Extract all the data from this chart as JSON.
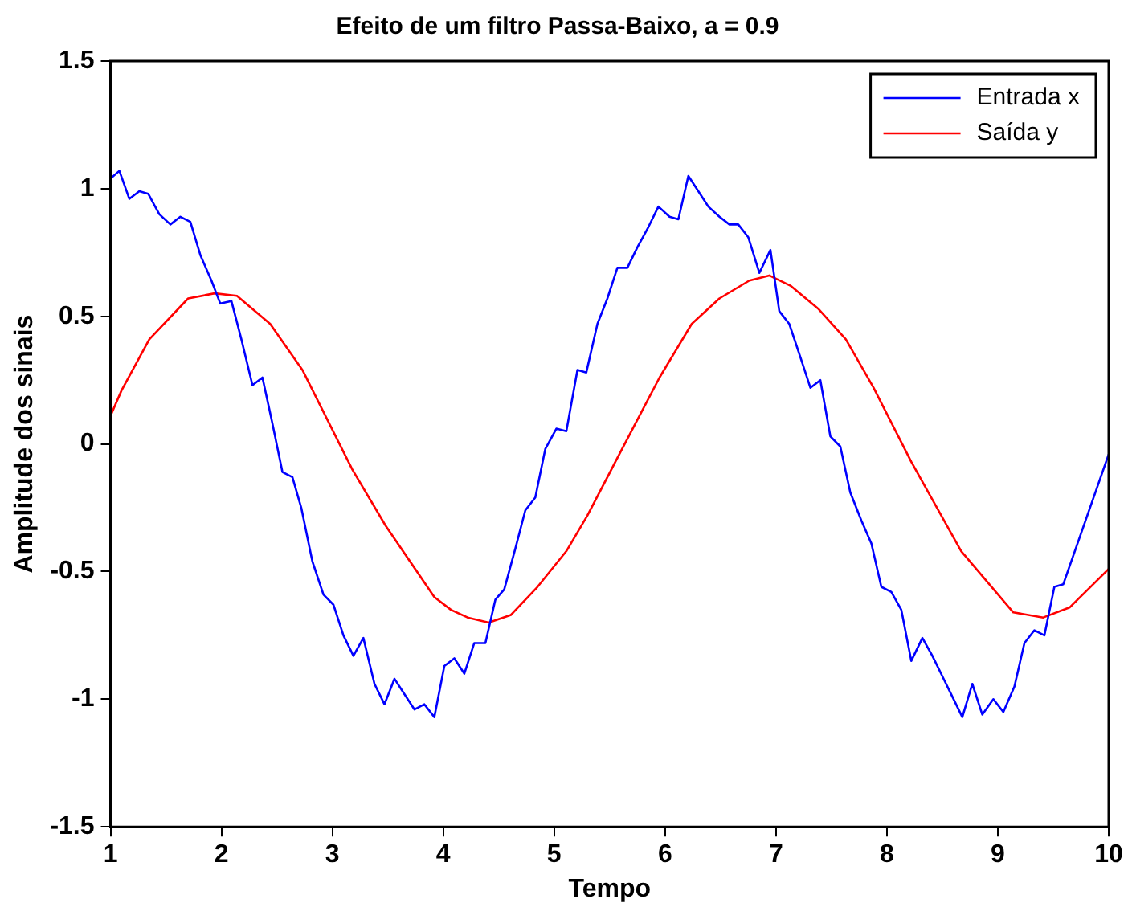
{
  "chart_data": {
    "type": "line",
    "title": "Efeito de um filtro Passa-Baixo, a = 0.9",
    "xlabel": "Tempo",
    "ylabel": "Amplitude dos sinais",
    "xlim": [
      1,
      10
    ],
    "xticks": [
      1,
      2,
      3,
      4,
      5,
      6,
      7,
      8,
      9,
      10
    ],
    "ylim": [
      -1.5,
      1.5
    ],
    "yticks": [
      -1.5,
      -1,
      -0.5,
      0,
      0.5,
      1,
      1.5
    ],
    "grid": false,
    "legend": "top right",
    "marker": "none",
    "line_style": "solid",
    "series": [
      {
        "name": "Entrada x",
        "color": "#0000ff",
        "x": [
          1.0,
          1.08,
          1.17,
          1.26,
          1.34,
          1.44,
          1.54,
          1.63,
          1.72,
          1.81,
          1.91,
          1.99,
          2.09,
          2.18,
          2.28,
          2.37,
          2.46,
          2.55,
          2.64,
          2.72,
          2.82,
          2.92,
          3.01,
          3.1,
          3.19,
          3.28,
          3.38,
          3.47,
          3.56,
          3.65,
          3.74,
          3.83,
          3.92,
          4.01,
          4.1,
          4.19,
          4.28,
          4.38,
          4.47,
          4.55,
          4.65,
          4.74,
          4.83,
          4.92,
          5.02,
          5.11,
          5.21,
          5.29,
          5.39,
          5.48,
          5.57,
          5.66,
          5.75,
          5.85,
          5.94,
          6.04,
          6.12,
          6.21,
          6.3,
          6.39,
          6.49,
          6.58,
          6.66,
          6.75,
          6.85,
          6.95,
          7.03,
          7.12,
          7.22,
          7.31,
          7.4,
          7.49,
          7.58,
          7.67,
          7.77,
          7.86,
          7.95,
          8.04,
          8.13,
          8.22,
          8.32,
          8.41,
          8.5,
          8.59,
          8.68,
          8.77,
          8.86,
          8.96,
          9.05,
          9.15,
          9.24,
          9.33,
          9.42,
          9.51,
          9.59,
          10.0
        ],
        "values": [
          1.04,
          1.07,
          0.96,
          0.99,
          0.98,
          0.9,
          0.86,
          0.89,
          0.87,
          0.74,
          0.64,
          0.55,
          0.56,
          0.41,
          0.23,
          0.26,
          0.08,
          -0.11,
          -0.13,
          -0.25,
          -0.46,
          -0.59,
          -0.63,
          -0.75,
          -0.83,
          -0.76,
          -0.94,
          -1.02,
          -0.92,
          -0.98,
          -1.04,
          -1.02,
          -1.07,
          -0.87,
          -0.84,
          -0.9,
          -0.78,
          -0.78,
          -0.61,
          -0.57,
          -0.41,
          -0.26,
          -0.21,
          -0.02,
          0.06,
          0.05,
          0.29,
          0.28,
          0.47,
          0.57,
          0.69,
          0.69,
          0.77,
          0.85,
          0.93,
          0.89,
          0.88,
          1.05,
          0.99,
          0.93,
          0.89,
          0.86,
          0.86,
          0.81,
          0.67,
          0.76,
          0.52,
          0.47,
          0.34,
          0.22,
          0.25,
          0.03,
          -0.01,
          -0.19,
          -0.3,
          -0.39,
          -0.56,
          -0.58,
          -0.65,
          -0.85,
          -0.76,
          -0.83,
          -0.91,
          -0.99,
          -1.07,
          -0.94,
          -1.06,
          -1.0,
          -1.05,
          -0.95,
          -0.78,
          -0.73,
          -0.75,
          -0.56,
          -0.55,
          -0.04
        ]
      },
      {
        "name": "Saída y",
        "color": "#ff0000",
        "x": [
          1.0,
          1.1,
          1.35,
          1.7,
          1.94,
          2.14,
          2.44,
          2.73,
          3.18,
          3.48,
          3.92,
          4.07,
          4.22,
          4.41,
          4.61,
          4.85,
          5.11,
          5.3,
          5.6,
          5.95,
          6.24,
          6.49,
          6.76,
          6.94,
          7.13,
          7.38,
          7.63,
          7.88,
          8.22,
          8.67,
          9.14,
          9.41,
          9.65,
          10.0
        ],
        "values": [
          0.11,
          0.21,
          0.41,
          0.57,
          0.59,
          0.58,
          0.47,
          0.29,
          -0.1,
          -0.32,
          -0.6,
          -0.65,
          -0.68,
          -0.7,
          -0.67,
          -0.56,
          -0.42,
          -0.28,
          -0.03,
          0.26,
          0.47,
          0.57,
          0.64,
          0.66,
          0.62,
          0.53,
          0.41,
          0.22,
          -0.07,
          -0.42,
          -0.66,
          -0.68,
          -0.64,
          -0.49
        ]
      }
    ]
  }
}
